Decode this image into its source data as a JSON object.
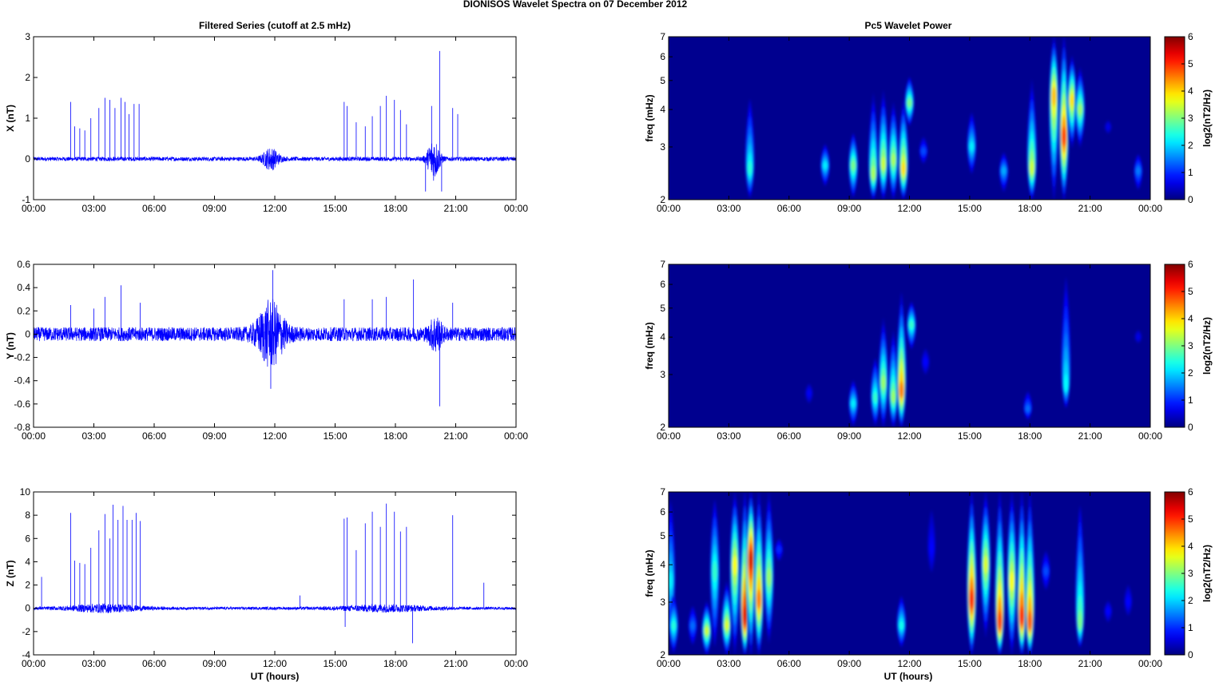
{
  "figure": {
    "title": "DIONISOS Wavelet Spectra on 07 December  2012",
    "left_column_title": "Filtered Series (cutoff at 2.5 mHz)",
    "right_column_title": "Pc5 Wavelet Power",
    "xlabel": "UT (hours)"
  },
  "colors": {
    "series_line": "#0000ff",
    "background_map": "#00008f"
  },
  "chart_data": [
    {
      "type": "line",
      "panel": "X component filtered series",
      "ylabel": "X (nT)",
      "x_ticks": [
        "00:00",
        "03:00",
        "06:00",
        "09:00",
        "12:00",
        "15:00",
        "18:00",
        "21:00",
        "00:00"
      ],
      "xlim_hours": [
        0,
        24
      ],
      "ylim": [
        -1,
        3
      ],
      "y_ticks": [
        "3",
        "2",
        "1",
        "0",
        "-1"
      ],
      "y_tick_values": [
        3,
        2,
        1,
        0,
        -1
      ],
      "noise_amplitude": 0.05,
      "disturbed_intervals": [
        {
          "center_hours": 11.8,
          "width_hours": 0.8,
          "amplitude": 0.25
        },
        {
          "center_hours": 19.9,
          "width_hours": 0.6,
          "amplitude": 0.5
        }
      ],
      "spikes": [
        {
          "hour": 1.85,
          "value": 1.4
        },
        {
          "hour": 2.05,
          "value": 0.8
        },
        {
          "hour": 2.3,
          "value": 0.75
        },
        {
          "hour": 2.55,
          "value": 0.7
        },
        {
          "hour": 2.85,
          "value": 1.0
        },
        {
          "hour": 3.25,
          "value": 1.25
        },
        {
          "hour": 3.55,
          "value": 1.5
        },
        {
          "hour": 3.8,
          "value": 1.45
        },
        {
          "hour": 4.05,
          "value": 1.25
        },
        {
          "hour": 4.35,
          "value": 1.5
        },
        {
          "hour": 4.55,
          "value": 1.4
        },
        {
          "hour": 4.75,
          "value": 1.1
        },
        {
          "hour": 5.0,
          "value": 1.35
        },
        {
          "hour": 5.25,
          "value": 1.35
        },
        {
          "hour": 15.45,
          "value": 1.4
        },
        {
          "hour": 15.6,
          "value": 1.3
        },
        {
          "hour": 16.05,
          "value": 0.9
        },
        {
          "hour": 16.5,
          "value": 0.8
        },
        {
          "hour": 16.85,
          "value": 1.05
        },
        {
          "hour": 17.25,
          "value": 1.3
        },
        {
          "hour": 17.55,
          "value": 1.55
        },
        {
          "hour": 17.95,
          "value": 1.45
        },
        {
          "hour": 18.25,
          "value": 1.2
        },
        {
          "hour": 18.55,
          "value": 0.85
        },
        {
          "hour": 19.8,
          "value": 1.3
        },
        {
          "hour": 20.2,
          "value": 2.65
        },
        {
          "hour": 20.85,
          "value": 1.25
        },
        {
          "hour": 21.1,
          "value": 1.1
        },
        {
          "hour": 20.3,
          "value": -0.8
        },
        {
          "hour": 19.5,
          "value": -0.8
        }
      ]
    },
    {
      "type": "line",
      "panel": "Y component filtered series",
      "ylabel": "Y (nT)",
      "x_ticks": [
        "00:00",
        "03:00",
        "06:00",
        "09:00",
        "12:00",
        "15:00",
        "18:00",
        "21:00",
        "00:00"
      ],
      "xlim_hours": [
        0,
        24
      ],
      "ylim": [
        -0.8,
        0.6
      ],
      "y_ticks": [
        "0.6",
        "0.4",
        "0.2",
        "0",
        "-0.2",
        "-0.4",
        "-0.6",
        "-0.8"
      ],
      "y_tick_values": [
        0.6,
        0.4,
        0.2,
        0,
        -0.2,
        -0.4,
        -0.6,
        -0.8
      ],
      "noise_amplitude": 0.06,
      "disturbed_intervals": [
        {
          "center_hours": 11.8,
          "width_hours": 1.3,
          "amplitude": 0.25
        },
        {
          "center_hours": 20.0,
          "width_hours": 0.6,
          "amplitude": 0.12
        }
      ],
      "spikes": [
        {
          "hour": 1.85,
          "value": 0.25
        },
        {
          "hour": 3.0,
          "value": 0.22
        },
        {
          "hour": 3.55,
          "value": 0.32
        },
        {
          "hour": 4.35,
          "value": 0.42
        },
        {
          "hour": 5.3,
          "value": 0.27
        },
        {
          "hour": 11.9,
          "value": 0.55
        },
        {
          "hour": 11.8,
          "value": -0.47
        },
        {
          "hour": 15.45,
          "value": 0.3
        },
        {
          "hour": 16.85,
          "value": 0.3
        },
        {
          "hour": 17.55,
          "value": 0.32
        },
        {
          "hour": 18.9,
          "value": 0.47
        },
        {
          "hour": 20.2,
          "value": -0.62
        },
        {
          "hour": 20.85,
          "value": 0.27
        }
      ]
    },
    {
      "type": "line",
      "panel": "Z component filtered series",
      "ylabel": "Z (nT)",
      "x_ticks": [
        "00:00",
        "03:00",
        "06:00",
        "09:00",
        "12:00",
        "15:00",
        "18:00",
        "21:00",
        "00:00"
      ],
      "xlim_hours": [
        0,
        24
      ],
      "ylim": [
        -4,
        10
      ],
      "y_ticks": [
        "10",
        "8",
        "6",
        "4",
        "2",
        "0",
        "-2",
        "-4"
      ],
      "y_tick_values": [
        10,
        8,
        6,
        4,
        2,
        0,
        -2,
        -4
      ],
      "noise_amplitude": 0.12,
      "disturbed_intervals": [
        {
          "center_hours": 3.5,
          "width_hours": 3.6,
          "amplitude": 0.3
        },
        {
          "center_hours": 17.5,
          "width_hours": 4.5,
          "amplitude": 0.25
        }
      ],
      "spikes": [
        {
          "hour": 0.4,
          "value": 2.7
        },
        {
          "hour": 1.85,
          "value": 8.2
        },
        {
          "hour": 2.05,
          "value": 4.1
        },
        {
          "hour": 2.3,
          "value": 3.9
        },
        {
          "hour": 2.55,
          "value": 3.8
        },
        {
          "hour": 2.85,
          "value": 5.2
        },
        {
          "hour": 3.25,
          "value": 6.7
        },
        {
          "hour": 3.55,
          "value": 8.1
        },
        {
          "hour": 3.8,
          "value": 6.0
        },
        {
          "hour": 3.95,
          "value": 8.9
        },
        {
          "hour": 4.2,
          "value": 7.6
        },
        {
          "hour": 4.45,
          "value": 8.8
        },
        {
          "hour": 4.65,
          "value": 7.6
        },
        {
          "hour": 4.9,
          "value": 7.6
        },
        {
          "hour": 5.1,
          "value": 8.2
        },
        {
          "hour": 5.3,
          "value": 7.5
        },
        {
          "hour": 13.25,
          "value": 1.1
        },
        {
          "hour": 15.45,
          "value": 7.7
        },
        {
          "hour": 15.6,
          "value": 7.8
        },
        {
          "hour": 16.05,
          "value": 5.0
        },
        {
          "hour": 16.5,
          "value": 7.3
        },
        {
          "hour": 16.85,
          "value": 8.3
        },
        {
          "hour": 17.25,
          "value": 7.0
        },
        {
          "hour": 17.55,
          "value": 9.0
        },
        {
          "hour": 17.95,
          "value": 8.3
        },
        {
          "hour": 18.25,
          "value": 6.6
        },
        {
          "hour": 18.55,
          "value": 7.0
        },
        {
          "hour": 18.85,
          "value": -3.0
        },
        {
          "hour": 20.85,
          "value": 8.0
        },
        {
          "hour": 22.4,
          "value": 2.2
        },
        {
          "hour": 15.5,
          "value": -1.6
        }
      ]
    },
    {
      "type": "heatmap",
      "panel": "X component Pc5 wavelet power",
      "ylabel": "freq (mHz)",
      "x_ticks": [
        "00:00",
        "03:00",
        "06:00",
        "09:00",
        "12:00",
        "15:00",
        "18:00",
        "21:00",
        "00:00"
      ],
      "xlim_hours": [
        0,
        24
      ],
      "freq_scale": "log",
      "ylim_mHz": [
        2,
        7
      ],
      "y_ticks": [
        "7",
        "6",
        "5",
        "4",
        "3",
        "2"
      ],
      "y_tick_values": [
        7,
        6,
        5,
        4,
        3,
        2
      ],
      "colorbar_label": "log2(nT2/Hz)",
      "colorbar_range": [
        0,
        6
      ],
      "colorbar_ticks": [
        "6",
        "5",
        "4",
        "3",
        "2",
        "1",
        "0"
      ],
      "colorbar_tick_values": [
        6,
        5,
        4,
        3,
        2,
        1,
        0
      ],
      "blobs": [
        {
          "hour": 4.05,
          "f_center": 2.5,
          "f_top": 4.6,
          "f_bottom": 2.0,
          "peak": 2.5
        },
        {
          "hour": 7.8,
          "f_center": 2.6,
          "f_top": 3.1,
          "f_bottom": 2.2,
          "peak": 2.2
        },
        {
          "hour": 9.2,
          "f_center": 2.6,
          "f_top": 3.4,
          "f_bottom": 2.0,
          "peak": 3.0
        },
        {
          "hour": 10.2,
          "f_center": 2.4,
          "f_top": 4.5,
          "f_bottom": 2.0,
          "peak": 3.3
        },
        {
          "hour": 10.7,
          "f_center": 2.6,
          "f_top": 4.6,
          "f_bottom": 2.0,
          "peak": 3.5
        },
        {
          "hour": 11.2,
          "f_center": 2.7,
          "f_top": 4.2,
          "f_bottom": 2.0,
          "peak": 3.3
        },
        {
          "hour": 11.7,
          "f_center": 2.5,
          "f_top": 4.3,
          "f_bottom": 2.0,
          "peak": 4.0
        },
        {
          "hour": 12.0,
          "f_center": 4.2,
          "f_top": 5.2,
          "f_bottom": 3.5,
          "peak": 3.0
        },
        {
          "hour": 12.7,
          "f_center": 2.9,
          "f_top": 3.3,
          "f_bottom": 2.6,
          "peak": 1.2
        },
        {
          "hour": 15.1,
          "f_center": 3.0,
          "f_top": 4.0,
          "f_bottom": 2.4,
          "peak": 2.2
        },
        {
          "hour": 16.7,
          "f_center": 2.5,
          "f_top": 2.9,
          "f_bottom": 2.1,
          "peak": 1.8
        },
        {
          "hour": 18.1,
          "f_center": 2.5,
          "f_top": 5.0,
          "f_bottom": 2.0,
          "peak": 3.5
        },
        {
          "hour": 19.2,
          "f_center": 4.5,
          "f_top": 7.0,
          "f_bottom": 2.0,
          "peak": 4.2
        },
        {
          "hour": 19.7,
          "f_center": 3.2,
          "f_top": 7.0,
          "f_bottom": 2.0,
          "peak": 5.0
        },
        {
          "hour": 20.1,
          "f_center": 4.3,
          "f_top": 6.0,
          "f_bottom": 3.0,
          "peak": 4.0
        },
        {
          "hour": 20.5,
          "f_center": 4.0,
          "f_top": 5.5,
          "f_bottom": 3.0,
          "peak": 3.2
        },
        {
          "hour": 23.4,
          "f_center": 2.5,
          "f_top": 2.9,
          "f_bottom": 2.1,
          "peak": 1.5
        },
        {
          "hour": 21.9,
          "f_center": 3.5,
          "f_top": 3.8,
          "f_bottom": 3.2,
          "peak": 0.6
        }
      ]
    },
    {
      "type": "heatmap",
      "panel": "Y component Pc5 wavelet power",
      "ylabel": "freq (mHz)",
      "x_ticks": [
        "00:00",
        "03:00",
        "06:00",
        "09:00",
        "12:00",
        "15:00",
        "18:00",
        "21:00",
        "00:00"
      ],
      "xlim_hours": [
        0,
        24
      ],
      "freq_scale": "log",
      "ylim_mHz": [
        2,
        7
      ],
      "y_ticks": [
        "7",
        "6",
        "5",
        "4",
        "3",
        "2"
      ],
      "y_tick_values": [
        7,
        6,
        5,
        4,
        3,
        2
      ],
      "colorbar_label": "log2(nT2/Hz)",
      "colorbar_range": [
        0,
        6
      ],
      "colorbar_ticks": [
        "6",
        "5",
        "4",
        "3",
        "2",
        "1",
        "0"
      ],
      "colorbar_tick_values": [
        6,
        5,
        4,
        3,
        2,
        1,
        0
      ],
      "blobs": [
        {
          "hour": 7.0,
          "f_center": 2.6,
          "f_top": 2.9,
          "f_bottom": 2.3,
          "peak": 0.7
        },
        {
          "hour": 9.2,
          "f_center": 2.4,
          "f_top": 2.9,
          "f_bottom": 2.0,
          "peak": 2.2
        },
        {
          "hour": 10.3,
          "f_center": 2.5,
          "f_top": 3.5,
          "f_bottom": 2.0,
          "peak": 2.6
        },
        {
          "hour": 10.7,
          "f_center": 2.8,
          "f_top": 4.6,
          "f_bottom": 2.0,
          "peak": 3.2
        },
        {
          "hour": 11.2,
          "f_center": 2.5,
          "f_top": 4.2,
          "f_bottom": 2.0,
          "peak": 3.2
        },
        {
          "hour": 11.6,
          "f_center": 2.6,
          "f_top": 5.6,
          "f_bottom": 2.0,
          "peak": 4.6
        },
        {
          "hour": 12.1,
          "f_center": 4.4,
          "f_top": 5.3,
          "f_bottom": 3.6,
          "peak": 2.6
        },
        {
          "hour": 12.8,
          "f_center": 3.3,
          "f_top": 3.8,
          "f_bottom": 2.9,
          "peak": 0.8
        },
        {
          "hour": 17.9,
          "f_center": 2.3,
          "f_top": 2.7,
          "f_bottom": 2.1,
          "peak": 1.4
        },
        {
          "hour": 19.8,
          "f_center": 2.7,
          "f_top": 7.0,
          "f_bottom": 2.3,
          "peak": 2.3
        },
        {
          "hour": 23.4,
          "f_center": 4.0,
          "f_top": 4.4,
          "f_bottom": 3.7,
          "peak": 0.6
        }
      ]
    },
    {
      "type": "heatmap",
      "panel": "Z component Pc5 wavelet power",
      "ylabel": "freq (mHz)",
      "x_ticks": [
        "00:00",
        "03:00",
        "06:00",
        "09:00",
        "12:00",
        "15:00",
        "18:00",
        "21:00",
        "00:00"
      ],
      "xlim_hours": [
        0,
        24
      ],
      "freq_scale": "log",
      "ylim_mHz": [
        2,
        7
      ],
      "y_ticks": [
        "7",
        "6",
        "5",
        "4",
        "3",
        "2"
      ],
      "y_tick_values": [
        7,
        6,
        5,
        4,
        3,
        2
      ],
      "colorbar_label": "log2(nT2/Hz)",
      "colorbar_range": [
        0,
        6
      ],
      "colorbar_ticks": [
        "6",
        "5",
        "4",
        "3",
        "2",
        "1",
        "0"
      ],
      "colorbar_tick_values": [
        6,
        5,
        4,
        3,
        2,
        1,
        0
      ],
      "blobs": [
        {
          "hour": 0.1,
          "f_center": 3.5,
          "f_top": 7.0,
          "f_bottom": 2.2,
          "peak": 2.2
        },
        {
          "hour": 0.25,
          "f_center": 2.5,
          "f_top": 3.2,
          "f_bottom": 2.0,
          "peak": 2.5
        },
        {
          "hour": 1.2,
          "f_center": 2.5,
          "f_top": 3.0,
          "f_bottom": 2.1,
          "peak": 1.4
        },
        {
          "hour": 1.9,
          "f_center": 2.4,
          "f_top": 3.0,
          "f_bottom": 2.0,
          "peak": 3.5
        },
        {
          "hour": 2.3,
          "f_center": 3.8,
          "f_top": 7.0,
          "f_bottom": 2.0,
          "peak": 2.6
        },
        {
          "hour": 2.9,
          "f_center": 2.5,
          "f_top": 3.5,
          "f_bottom": 2.0,
          "peak": 3.6
        },
        {
          "hour": 3.3,
          "f_center": 4.0,
          "f_top": 7.0,
          "f_bottom": 2.0,
          "peak": 3.8
        },
        {
          "hour": 3.8,
          "f_center": 2.6,
          "f_top": 7.0,
          "f_bottom": 2.0,
          "peak": 5.5
        },
        {
          "hour": 4.1,
          "f_center": 4.2,
          "f_top": 7.0,
          "f_bottom": 2.0,
          "peak": 5.6
        },
        {
          "hour": 4.5,
          "f_center": 3.0,
          "f_top": 7.0,
          "f_bottom": 2.0,
          "peak": 4.6
        },
        {
          "hour": 5.0,
          "f_center": 3.6,
          "f_top": 7.0,
          "f_bottom": 2.2,
          "peak": 3.2
        },
        {
          "hour": 5.5,
          "f_center": 4.5,
          "f_top": 5.0,
          "f_bottom": 4.0,
          "peak": 1.0
        },
        {
          "hour": 11.6,
          "f_center": 2.5,
          "f_top": 3.2,
          "f_bottom": 2.1,
          "peak": 2.4
        },
        {
          "hour": 13.1,
          "f_center": 4.5,
          "f_top": 7.0,
          "f_bottom": 3.5,
          "peak": 0.8
        },
        {
          "hour": 15.1,
          "f_center": 3.0,
          "f_top": 7.0,
          "f_bottom": 2.0,
          "peak": 5.2
        },
        {
          "hour": 15.8,
          "f_center": 4.0,
          "f_top": 7.0,
          "f_bottom": 2.3,
          "peak": 3.6
        },
        {
          "hour": 16.5,
          "f_center": 2.5,
          "f_top": 7.0,
          "f_bottom": 2.0,
          "peak": 5.0
        },
        {
          "hour": 17.1,
          "f_center": 3.5,
          "f_top": 7.0,
          "f_bottom": 2.0,
          "peak": 3.8
        },
        {
          "hour": 17.6,
          "f_center": 2.6,
          "f_top": 7.0,
          "f_bottom": 2.0,
          "peak": 5.2
        },
        {
          "hour": 18.0,
          "f_center": 2.5,
          "f_top": 7.0,
          "f_bottom": 2.0,
          "peak": 4.8
        },
        {
          "hour": 18.8,
          "f_center": 3.8,
          "f_top": 4.6,
          "f_bottom": 3.2,
          "peak": 1.2
        },
        {
          "hour": 20.5,
          "f_center": 2.5,
          "f_top": 7.0,
          "f_bottom": 2.1,
          "peak": 3.0
        },
        {
          "hour": 21.9,
          "f_center": 2.8,
          "f_top": 3.1,
          "f_bottom": 2.5,
          "peak": 0.8
        },
        {
          "hour": 22.9,
          "f_center": 3.0,
          "f_top": 3.6,
          "f_bottom": 2.6,
          "peak": 0.8
        }
      ]
    }
  ]
}
